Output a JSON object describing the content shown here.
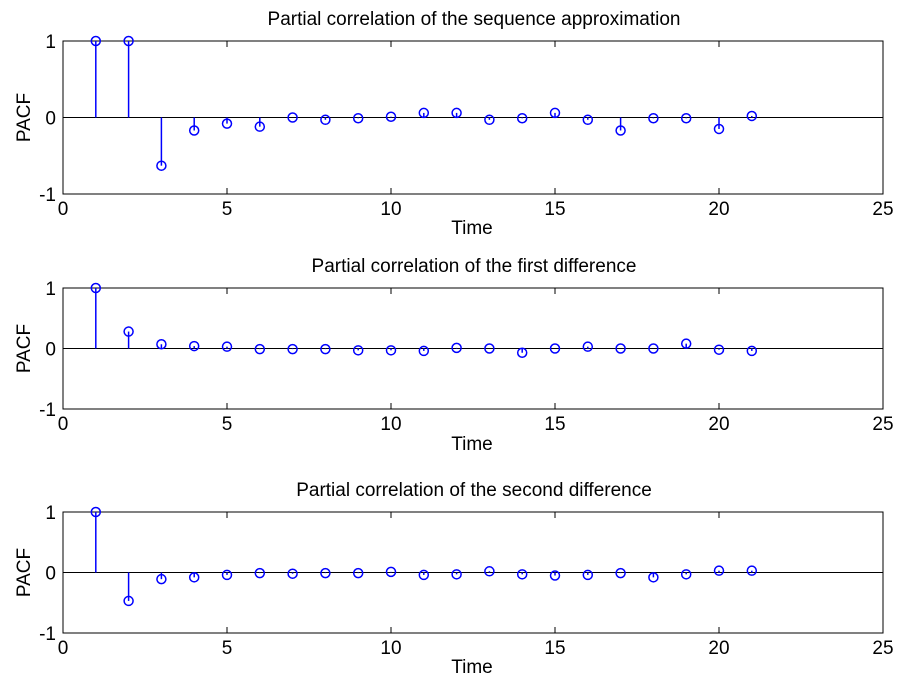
{
  "chart_data": [
    {
      "type": "stem",
      "title": "Partial correlation of the sequence approximation",
      "xlabel": "Time",
      "ylabel": "PACF",
      "xlim": [
        0,
        25
      ],
      "ylim": [
        -1,
        1
      ],
      "xticks": [
        "0",
        "5",
        "10",
        "15",
        "20",
        "25"
      ],
      "yticks": [
        "-1",
        "0",
        "1"
      ],
      "grid": false,
      "color": "#0000ff",
      "x": [
        1,
        2,
        3,
        4,
        5,
        6,
        7,
        8,
        9,
        10,
        11,
        12,
        13,
        14,
        15,
        16,
        17,
        18,
        19,
        20,
        21
      ],
      "values": [
        1.0,
        1.0,
        -0.63,
        -0.17,
        -0.08,
        -0.12,
        0.0,
        -0.03,
        -0.01,
        0.01,
        0.06,
        0.06,
        -0.03,
        -0.01,
        0.06,
        -0.03,
        -0.17,
        -0.01,
        -0.01,
        -0.15,
        0.02
      ]
    },
    {
      "type": "stem",
      "title": "Partial correlation of the first difference",
      "xlabel": "Time",
      "ylabel": "PACF",
      "xlim": [
        0,
        25
      ],
      "ylim": [
        -1,
        1
      ],
      "xticks": [
        "0",
        "5",
        "10",
        "15",
        "20",
        "25"
      ],
      "yticks": [
        "-1",
        "0",
        "1"
      ],
      "grid": false,
      "color": "#0000ff",
      "x": [
        1,
        2,
        3,
        4,
        5,
        6,
        7,
        8,
        9,
        10,
        11,
        12,
        13,
        14,
        15,
        16,
        17,
        18,
        19,
        20,
        21
      ],
      "values": [
        1.0,
        0.28,
        0.07,
        0.04,
        0.03,
        -0.01,
        -0.01,
        -0.01,
        -0.03,
        -0.03,
        -0.04,
        0.01,
        0.0,
        -0.07,
        0.0,
        0.03,
        0.0,
        0.0,
        0.08,
        -0.02,
        -0.04
      ]
    },
    {
      "type": "stem",
      "title": "Partial correlation of the second difference",
      "xlabel": "Time",
      "ylabel": "PACF",
      "xlim": [
        0,
        25
      ],
      "ylim": [
        -1,
        1
      ],
      "xticks": [
        "0",
        "5",
        "10",
        "15",
        "20",
        "25"
      ],
      "yticks": [
        "-1",
        "0",
        "1"
      ],
      "grid": false,
      "color": "#0000ff",
      "x": [
        1,
        2,
        3,
        4,
        5,
        6,
        7,
        8,
        9,
        10,
        11,
        12,
        13,
        14,
        15,
        16,
        17,
        18,
        19,
        20,
        21
      ],
      "values": [
        1.0,
        -0.47,
        -0.11,
        -0.08,
        -0.04,
        -0.01,
        -0.02,
        -0.01,
        -0.01,
        0.01,
        -0.04,
        -0.03,
        0.02,
        -0.03,
        -0.05,
        -0.04,
        -0.01,
        -0.08,
        -0.03,
        0.03,
        0.03
      ]
    }
  ]
}
